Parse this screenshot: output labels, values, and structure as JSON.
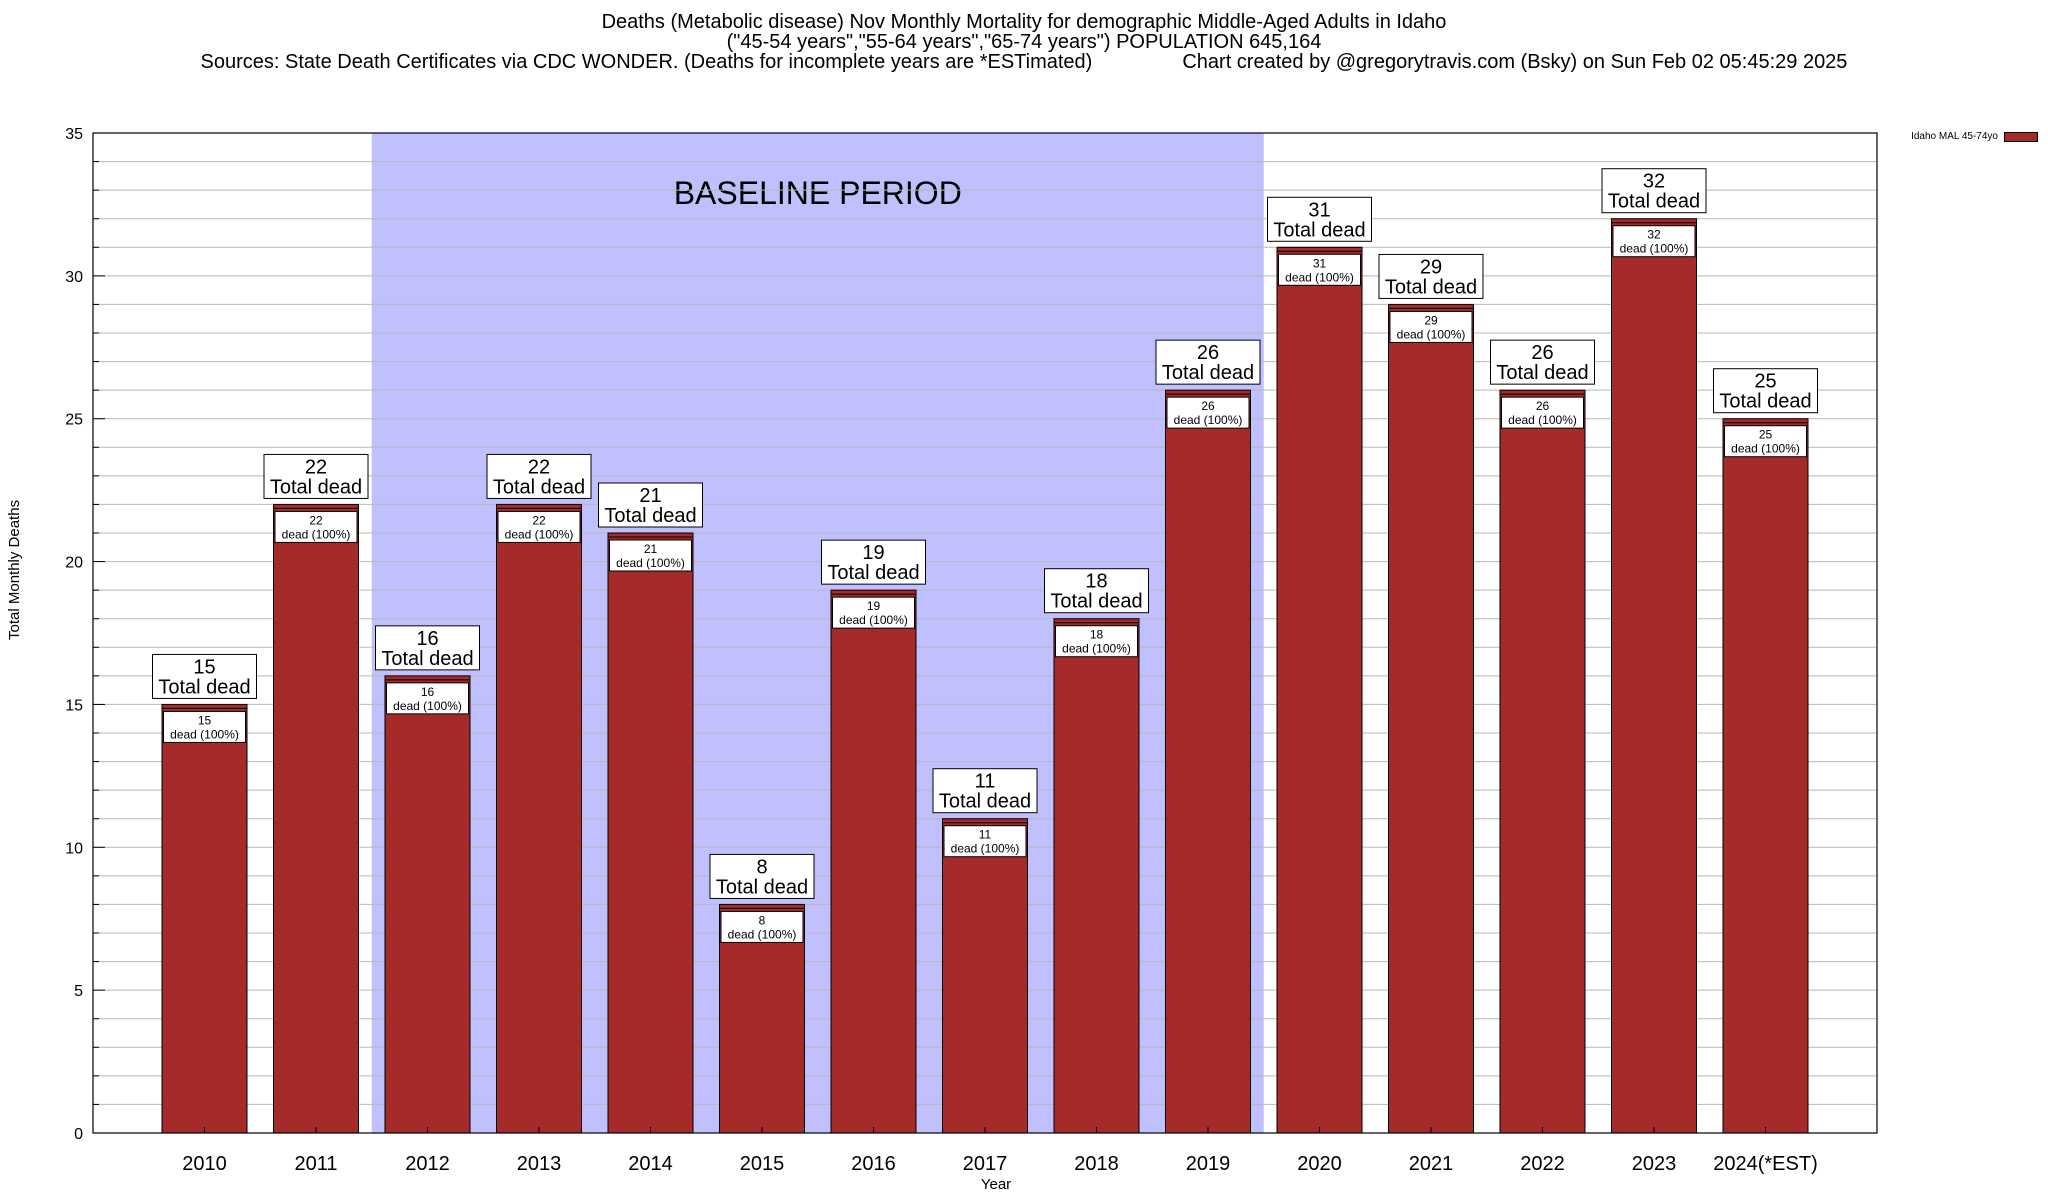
{
  "title": {
    "line1": "Deaths (Metabolic disease) Nov Monthly Mortality for demographic Middle-Aged Adults in Idaho",
    "line2": "(\"45-54 years\",\"55-64 years\",\"65-74 years\") POPULATION 645,164",
    "line3_left": "Sources: State Death Certificates via CDC WONDER. (Deaths for incomplete years are *ESTimated)",
    "line3_right": "Chart created by @gregorytravis.com (Bsky) on Sun Feb 02 05:45:29 2025"
  },
  "legend": {
    "label": "Idaho MAL 45-74yo",
    "color": "#a52a2a"
  },
  "annotation": {
    "baseline_text": "BASELINE PERIOD",
    "baseline_start": "2012",
    "baseline_end": "2019",
    "color": "#c0c0ff"
  },
  "chart_data": {
    "type": "bar",
    "title": "Deaths (Metabolic disease) Nov Monthly Mortality for demographic Middle-Aged Adults in Idaho",
    "xlabel": "Year",
    "ylabel": "Total Monthly Deaths",
    "ylim": [
      0,
      35
    ],
    "y_ticks": [
      0,
      5,
      10,
      15,
      20,
      25,
      30,
      35
    ],
    "grid": true,
    "legend_position": "top-right",
    "categories": [
      "2010",
      "2011",
      "2012",
      "2013",
      "2014",
      "2015",
      "2016",
      "2017",
      "2018",
      "2019",
      "2020",
      "2021",
      "2022",
      "2023",
      "2024(*EST)"
    ],
    "series": [
      {
        "name": "Idaho MAL 45-74yo",
        "color": "#a52a2a",
        "values": [
          15,
          22,
          16,
          22,
          21,
          8,
          19,
          11,
          18,
          26,
          31,
          29,
          26,
          32,
          25
        ]
      }
    ],
    "top_label_suffix": "Total dead",
    "inner_label_suffix": "dead (100%)"
  }
}
